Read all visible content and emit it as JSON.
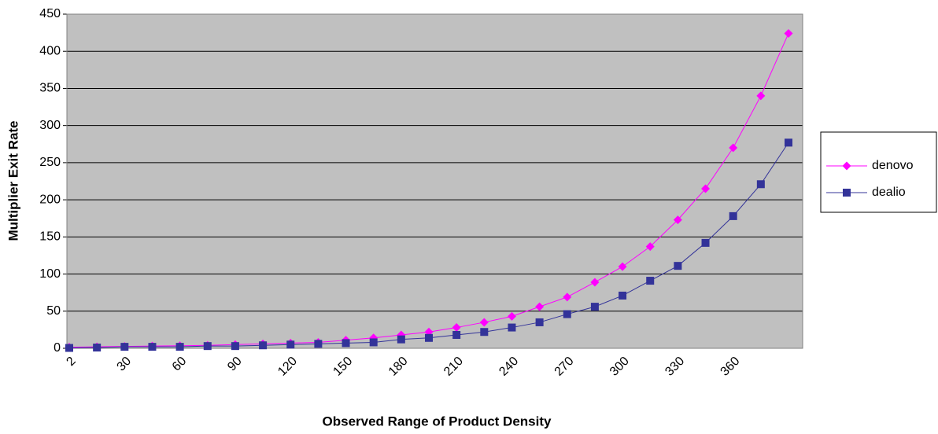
{
  "chart_data": {
    "type": "line",
    "xlabel": "Observed Range of Product Density",
    "ylabel": "Multiplier Exit Rate",
    "categories": [
      "2",
      null,
      "30",
      null,
      "60",
      null,
      "90",
      null,
      "120",
      null,
      "150",
      null,
      "180",
      null,
      "210",
      null,
      "240",
      null,
      "270",
      null,
      "300",
      null,
      "330",
      null,
      "360",
      null,
      null
    ],
    "series": [
      {
        "name": "denovo",
        "color": "#ff00ff",
        "marker": "diamond",
        "values": [
          1.5,
          2,
          2.5,
          3,
          3.5,
          4,
          5,
          6,
          7,
          8,
          11,
          14,
          18,
          22,
          28,
          35,
          43,
          56,
          69,
          89,
          110,
          137,
          173,
          215,
          270,
          340,
          424
        ]
      },
      {
        "name": "dealio",
        "color": "#333399",
        "marker": "square",
        "values": [
          0.5,
          1,
          2,
          2,
          2,
          3,
          3,
          4,
          5,
          6,
          7,
          8,
          12,
          14,
          18,
          22,
          28,
          35,
          46,
          56,
          71,
          91,
          111,
          142,
          178,
          221,
          277
        ]
      }
    ],
    "ylim": [
      0,
      450
    ],
    "yticks": [
      0,
      50,
      100,
      150,
      200,
      250,
      300,
      350,
      400,
      450
    ],
    "grid": true,
    "legend": "right"
  }
}
